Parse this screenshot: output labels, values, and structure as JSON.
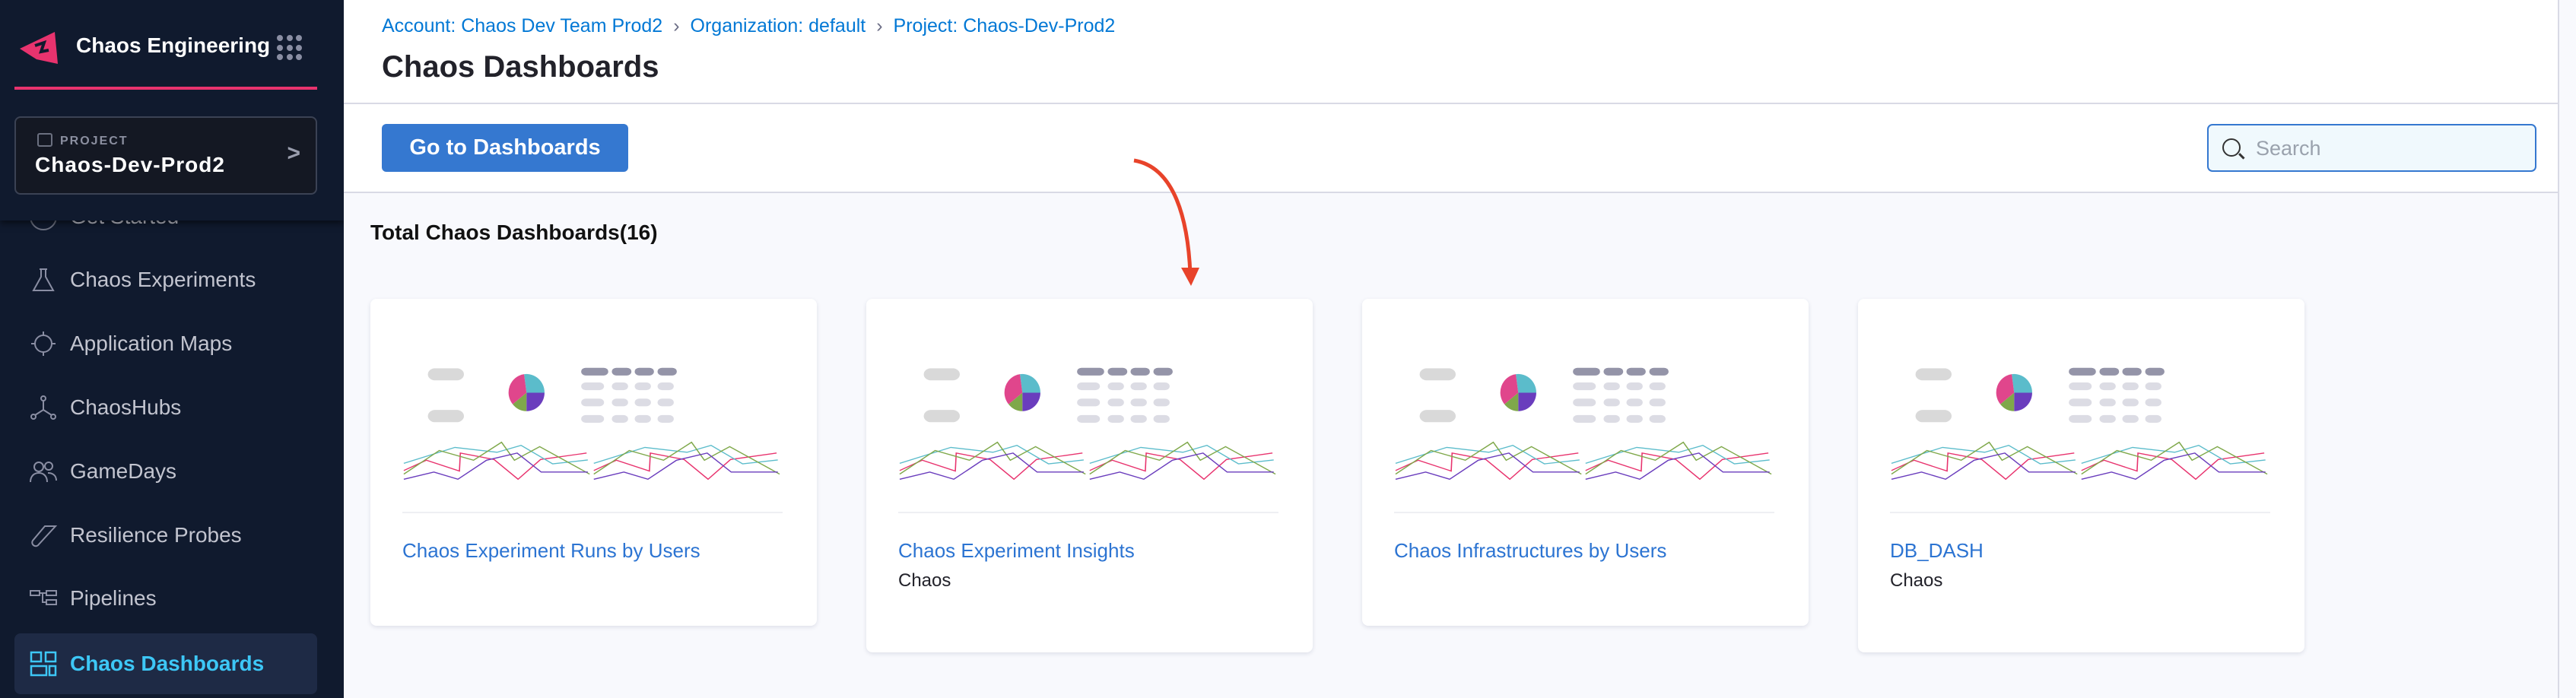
{
  "sidebar": {
    "app_title": "Chaos Engineering",
    "brand_color": "#e8336e",
    "project": {
      "label": "PROJECT",
      "name": "Chaos-Dev-Prod2"
    },
    "items": [
      {
        "label": "Get Started",
        "icon": "circle-icon"
      },
      {
        "label": "Chaos Experiments",
        "icon": "flask-icon"
      },
      {
        "label": "Application Maps",
        "icon": "target-icon"
      },
      {
        "label": "ChaosHubs",
        "icon": "hub-icon"
      },
      {
        "label": "GameDays",
        "icon": "users-icon"
      },
      {
        "label": "Resilience Probes",
        "icon": "probe-icon"
      },
      {
        "label": "Pipelines",
        "icon": "pipeline-icon"
      },
      {
        "label": "Chaos Dashboards",
        "icon": "dashboard-icon",
        "active": true
      }
    ]
  },
  "header": {
    "breadcrumbs": [
      "Account: Chaos Dev Team Prod2",
      "Organization: default",
      "Project: Chaos-Dev-Prod2"
    ],
    "title": "Chaos Dashboards"
  },
  "toolbar": {
    "go_label": "Go to Dashboards",
    "search_placeholder": "Search"
  },
  "main": {
    "total_label": "Total Chaos Dashboards(16)",
    "cards": [
      {
        "title": "Chaos Experiment Runs by Users",
        "subtitle": ""
      },
      {
        "title": "Chaos Experiment Insights",
        "subtitle": "Chaos"
      },
      {
        "title": "Chaos Infrastructures by Users",
        "subtitle": ""
      },
      {
        "title": "DB_DASH",
        "subtitle": "Chaos"
      }
    ]
  },
  "annotation_color": "#e8432a"
}
